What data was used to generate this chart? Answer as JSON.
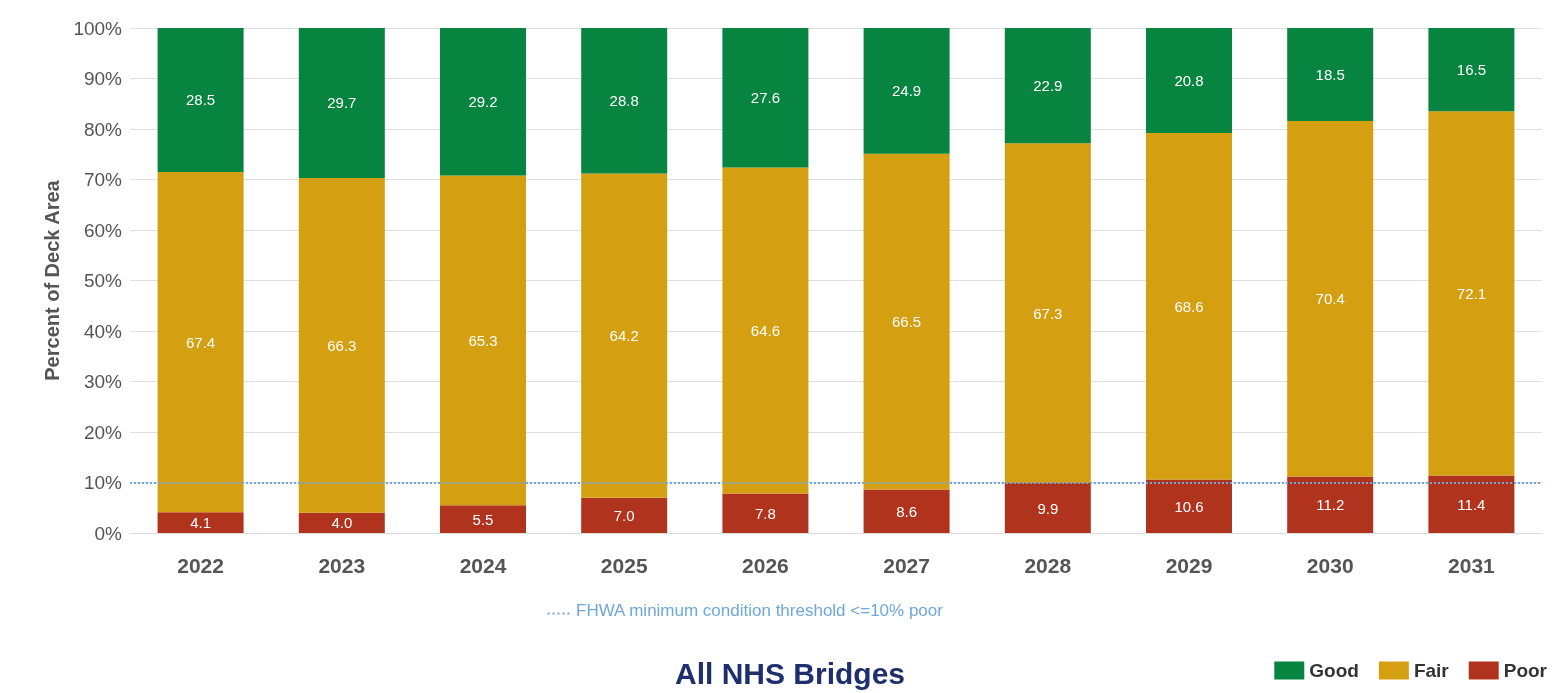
{
  "chart_data": {
    "type": "bar",
    "title": "All NHS Bridges",
    "ylabel": "Percent of Deck Area",
    "categories": [
      "2022",
      "2023",
      "2024",
      "2025",
      "2026",
      "2027",
      "2028",
      "2029",
      "2030",
      "2031"
    ],
    "stacked": true,
    "grid": "y",
    "legend": "bottom right",
    "ylim": [
      0,
      100
    ],
    "yticks": [
      {
        "value": 0,
        "label": "0%"
      },
      {
        "value": 10,
        "label": "10%"
      },
      {
        "value": 20,
        "label": "20%"
      },
      {
        "value": 30,
        "label": "30%"
      },
      {
        "value": 40,
        "label": "40%"
      },
      {
        "value": 50,
        "label": "50%"
      },
      {
        "value": 60,
        "label": "60%"
      },
      {
        "value": 70,
        "label": "70%"
      },
      {
        "value": 80,
        "label": "80%"
      },
      {
        "value": 90,
        "label": "90%"
      },
      {
        "value": 100,
        "label": "100%"
      }
    ],
    "series": [
      {
        "name": "Poor",
        "color": "#b0331e",
        "values": [
          4.1,
          4.0,
          5.5,
          7.0,
          7.8,
          8.6,
          9.9,
          10.6,
          11.2,
          11.4
        ],
        "value_labels": [
          "4.1",
          "4.0",
          "5.5",
          "7.0",
          "7.8",
          "8.6",
          "9.9",
          "10.6",
          "11.2",
          "11.4"
        ]
      },
      {
        "name": "Fair",
        "color": "#d59f12",
        "values": [
          67.4,
          66.3,
          65.3,
          64.2,
          64.6,
          66.5,
          67.3,
          68.6,
          70.4,
          72.1
        ],
        "value_labels": [
          "67.4",
          "66.3",
          "65.3",
          "64.2",
          "64.6",
          "66.5",
          "67.3",
          "68.6",
          "70.4",
          "72.1"
        ]
      },
      {
        "name": "Good",
        "color": "#068440",
        "values": [
          28.5,
          29.7,
          29.2,
          28.8,
          27.6,
          24.9,
          22.9,
          20.8,
          18.5,
          16.5
        ],
        "value_labels": [
          "28.5",
          "29.7",
          "29.2",
          "28.8",
          "27.6",
          "24.9",
          "22.9",
          "20.8",
          "18.5",
          "16.5"
        ]
      }
    ],
    "ref_lines": [
      {
        "axis": "y",
        "value": 10,
        "label": "FHWA minimum condition threshold <=10% poor",
        "color": "#6fa8dc",
        "line_style": "dotted"
      }
    ]
  }
}
